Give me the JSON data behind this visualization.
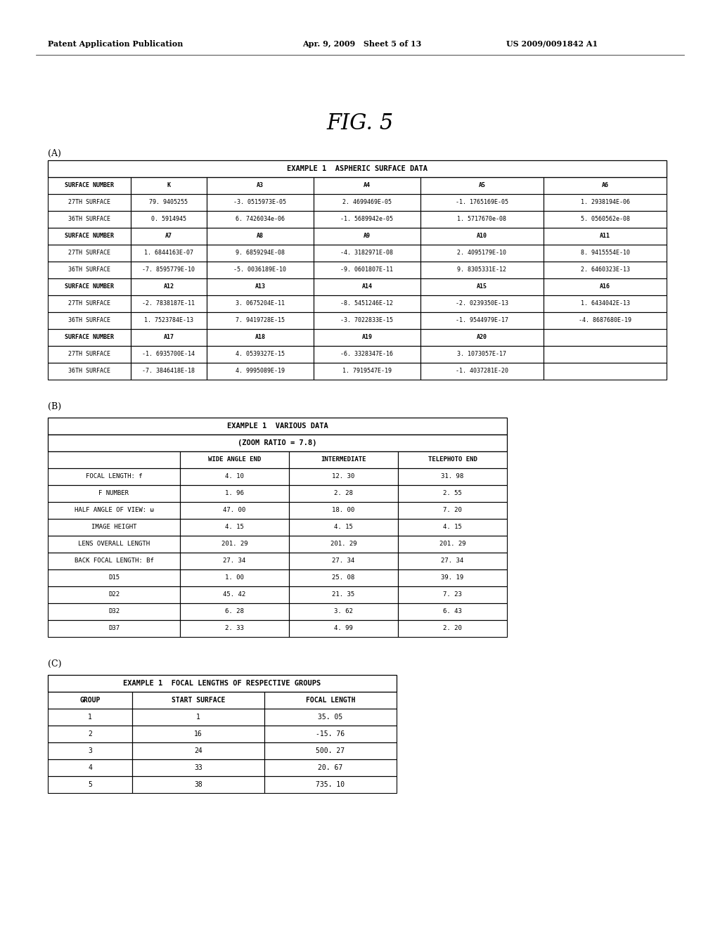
{
  "header_text_left": "Patent Application Publication",
  "header_text_mid": "Apr. 9, 2009   Sheet 5 of 13",
  "header_text_right": "US 2009/0091842 A1",
  "fig_title": "FIG. 5",
  "section_a_label": "(A)",
  "section_b_label": "(B)",
  "section_c_label": "(C)",
  "table_a_title": "EXAMPLE 1  ASPHERIC SURFACE DATA",
  "table_a_rows_1": [
    [
      "SURFACE NUMBER",
      "K",
      "A3",
      "A4",
      "A5",
      "A6"
    ],
    [
      "27TH SURFACE",
      "79. 9405255",
      "-3. 0515973E-05",
      "2. 4699469E-05",
      "-1. 1765169E-05",
      "1. 2938194E-06"
    ],
    [
      "36TH SURFACE",
      "0. 5914945",
      "6. 7426034e-06",
      "-1. 5689942e-05",
      "1. 5717670e-08",
      "5. 0560562e-08"
    ]
  ],
  "table_a_rows_2": [
    [
      "SURFACE NUMBER",
      "A7",
      "A8",
      "A9",
      "A10",
      "A11"
    ],
    [
      "27TH SURFACE",
      "1. 6844163E-07",
      "9. 6859294E-08",
      "-4. 3182971E-08",
      "2. 4095179E-10",
      "8. 9415554E-10"
    ],
    [
      "36TH SURFACE",
      "-7. 8595779E-10",
      "-5. 0036189E-10",
      "-9. 0601807E-11",
      "9. 8305331E-12",
      "2. 6460323E-13"
    ]
  ],
  "table_a_rows_3": [
    [
      "SURFACE NUMBER",
      "A12",
      "A13",
      "A14",
      "A15",
      "A16"
    ],
    [
      "27TH SURFACE",
      "-2. 7838187E-11",
      "3. 0675204E-11",
      "-8. 5451246E-12",
      "-2. 0239350E-13",
      "1. 6434042E-13"
    ],
    [
      "36TH SURFACE",
      "1. 7523784E-13",
      "7. 9419728E-15",
      "-3. 7022833E-15",
      "-1. 9544979E-17",
      "-4. 8687680E-19"
    ]
  ],
  "table_a_rows_4": [
    [
      "SURFACE NUMBER",
      "A17",
      "A18",
      "A19",
      "A20",
      ""
    ],
    [
      "27TH SURFACE",
      "-1. 6935700E-14",
      "4. 0539327E-15",
      "-6. 3328347E-16",
      "3. 1073057E-17",
      ""
    ],
    [
      "36TH SURFACE",
      "-7. 3846418E-18",
      "4. 9995089E-19",
      "1. 7919547E-19",
      "-1. 4037281E-20",
      ""
    ]
  ],
  "table_b_title1": "EXAMPLE 1  VARIOUS DATA",
  "table_b_title2": "(ZOOM RATIO = 7.8)",
  "table_b_header": [
    "",
    "WIDE ANGLE END",
    "INTERMEDIATE",
    "TELEPHOTO END"
  ],
  "table_b_rows": [
    [
      "FOCAL LENGTH: f",
      "4. 10",
      "12. 30",
      "31. 98"
    ],
    [
      "F NUMBER",
      "1. 96",
      "2. 28",
      "2. 55"
    ],
    [
      "HALF ANGLE OF VIEW: ω",
      "47. 00",
      "18. 00",
      "7. 20"
    ],
    [
      "IMAGE HEIGHT",
      "4. 15",
      "4. 15",
      "4. 15"
    ],
    [
      "LENS OVERALL LENGTH",
      "201. 29",
      "201. 29",
      "201. 29"
    ],
    [
      "BACK FOCAL LENGTH: Bf",
      "27. 34",
      "27. 34",
      "27. 34"
    ],
    [
      "D15",
      "1. 00",
      "25. 08",
      "39. 19"
    ],
    [
      "D22",
      "45. 42",
      "21. 35",
      "7. 23"
    ],
    [
      "D32",
      "6. 28",
      "3. 62",
      "6. 43"
    ],
    [
      "D37",
      "2. 33",
      "4. 99",
      "2. 20"
    ]
  ],
  "table_c_title": "EXAMPLE 1  FOCAL LENGTHS OF RESPECTIVE GROUPS",
  "table_c_header": [
    "GROUP",
    "START SURFACE",
    "FOCAL LENGTH"
  ],
  "table_c_rows": [
    [
      "1",
      "1",
      "35. 05"
    ],
    [
      "2",
      "16",
      "-15. 76"
    ],
    [
      "3",
      "24",
      "500. 27"
    ],
    [
      "4",
      "33",
      "20. 67"
    ],
    [
      "5",
      "38",
      "735. 10"
    ]
  ]
}
